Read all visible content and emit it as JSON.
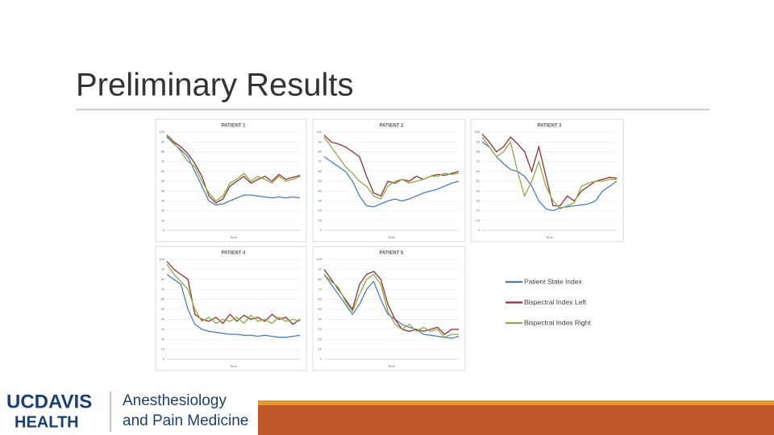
{
  "title": "Preliminary Results",
  "footer": {
    "logo_top": "UCDAVIS",
    "logo_bottom": "HEALTH",
    "dept_line_1": "Anesthesiology",
    "dept_line_2": "and Pain Medicine"
  },
  "chart_data": [
    {
      "type": "line",
      "title": "PATIENT 1",
      "x_label": "Time",
      "ylim": [
        0,
        100
      ],
      "yticks": [
        0,
        10,
        20,
        30,
        40,
        50,
        60,
        70,
        80,
        90,
        100
      ],
      "grid": true,
      "series": [
        {
          "name": "Patient State Index",
          "color": "#4a7ebb",
          "values": [
            95,
            88,
            82,
            75,
            60,
            45,
            30,
            26,
            27,
            30,
            33,
            36,
            36,
            35,
            34,
            33,
            34,
            33,
            34,
            33
          ]
        },
        {
          "name": "Bispectral Index Left",
          "color": "#9b2d30",
          "values": [
            97,
            90,
            85,
            78,
            68,
            55,
            35,
            28,
            32,
            45,
            50,
            55,
            48,
            52,
            55,
            50,
            57,
            52,
            54,
            56
          ]
        },
        {
          "name": "Bispectral Index Right",
          "color": "#8aac45",
          "values": [
            96,
            89,
            80,
            70,
            65,
            50,
            38,
            30,
            35,
            48,
            52,
            58,
            50,
            55,
            52,
            48,
            55,
            50,
            52,
            55
          ]
        }
      ]
    },
    {
      "type": "line",
      "title": "PATIENT 2",
      "x_label": "Time",
      "ylim": [
        0,
        100
      ],
      "yticks": [
        0,
        10,
        20,
        30,
        40,
        50,
        60,
        70,
        80,
        90,
        100
      ],
      "grid": true,
      "series": [
        {
          "name": "Patient State Index",
          "color": "#4a7ebb",
          "values": [
            75,
            70,
            65,
            60,
            50,
            35,
            25,
            24,
            27,
            30,
            32,
            30,
            32,
            35,
            38,
            40,
            42,
            45,
            48,
            50
          ]
        },
        {
          "name": "Bispectral Index Left",
          "color": "#9b2d30",
          "values": [
            97,
            90,
            88,
            85,
            80,
            75,
            55,
            38,
            35,
            50,
            48,
            52,
            50,
            55,
            52,
            55,
            57,
            56,
            58,
            60
          ]
        },
        {
          "name": "Bispectral Index Right",
          "color": "#8aac45",
          "values": [
            95,
            85,
            75,
            65,
            58,
            50,
            45,
            35,
            32,
            45,
            50,
            52,
            48,
            50,
            52,
            55,
            55,
            58,
            57,
            58
          ]
        }
      ]
    },
    {
      "type": "line",
      "title": "PATIENT 3",
      "x_label": "Time",
      "ylim": [
        0,
        100
      ],
      "yticks": [
        0,
        10,
        20,
        30,
        40,
        50,
        60,
        70,
        80,
        90,
        100
      ],
      "grid": true,
      "series": [
        {
          "name": "Patient State Index",
          "color": "#4a7ebb",
          "values": [
            90,
            85,
            75,
            68,
            62,
            60,
            55,
            45,
            30,
            22,
            20,
            23,
            24,
            25,
            26,
            27,
            30,
            40,
            45,
            50
          ]
        },
        {
          "name": "Bispectral Index Left",
          "color": "#9b2d30",
          "values": [
            98,
            90,
            80,
            85,
            95,
            88,
            80,
            60,
            85,
            55,
            25,
            25,
            35,
            30,
            40,
            45,
            50,
            52,
            54,
            53
          ]
        },
        {
          "name": "Bispectral Index Right",
          "color": "#8aac45",
          "values": [
            95,
            85,
            75,
            80,
            90,
            60,
            35,
            50,
            70,
            45,
            30,
            22,
            25,
            28,
            45,
            48,
            50,
            50,
            52,
            52
          ]
        }
      ]
    },
    {
      "type": "line",
      "title": "PATIENT 4",
      "x_label": "Time",
      "ylim": [
        0,
        100
      ],
      "yticks": [
        0,
        10,
        20,
        30,
        40,
        50,
        60,
        70,
        80,
        90,
        100
      ],
      "grid": true,
      "series": [
        {
          "name": "Patient State Index",
          "color": "#4a7ebb",
          "values": [
            85,
            80,
            75,
            50,
            35,
            30,
            28,
            27,
            26,
            25,
            25,
            24,
            24,
            23,
            24,
            23,
            22,
            22,
            23,
            24
          ]
        },
        {
          "name": "Bispectral Index Left",
          "color": "#9b2d30",
          "values": [
            98,
            90,
            85,
            80,
            45,
            40,
            38,
            42,
            36,
            45,
            38,
            44,
            40,
            42,
            38,
            45,
            40,
            42,
            35,
            40
          ]
        },
        {
          "name": "Bispectral Index Right",
          "color": "#8aac45",
          "values": [
            95,
            85,
            78,
            70,
            50,
            38,
            42,
            36,
            40,
            38,
            42,
            36,
            44,
            38,
            40,
            36,
            42,
            38,
            40,
            38
          ]
        }
      ]
    },
    {
      "type": "line",
      "title": "PATIENT 5",
      "x_label": "Time",
      "ylim": [
        0,
        100
      ],
      "yticks": [
        0,
        10,
        20,
        30,
        40,
        50,
        60,
        70,
        80,
        90,
        100
      ],
      "grid": true,
      "series": [
        {
          "name": "Patient State Index",
          "color": "#4a7ebb",
          "values": [
            85,
            75,
            65,
            55,
            45,
            55,
            70,
            78,
            60,
            45,
            40,
            35,
            32,
            30,
            25,
            24,
            23,
            22,
            21,
            23
          ]
        },
        {
          "name": "Bispectral Index Left",
          "color": "#9b2d30",
          "values": [
            90,
            80,
            70,
            60,
            50,
            75,
            85,
            88,
            80,
            55,
            40,
            30,
            28,
            30,
            28,
            30,
            32,
            25,
            30,
            30
          ]
        },
        {
          "name": "Bispectral Index Right",
          "color": "#8aac45",
          "values": [
            85,
            78,
            72,
            58,
            48,
            65,
            80,
            85,
            75,
            48,
            35,
            30,
            35,
            28,
            32,
            28,
            30,
            22,
            25,
            25
          ]
        }
      ]
    }
  ]
}
